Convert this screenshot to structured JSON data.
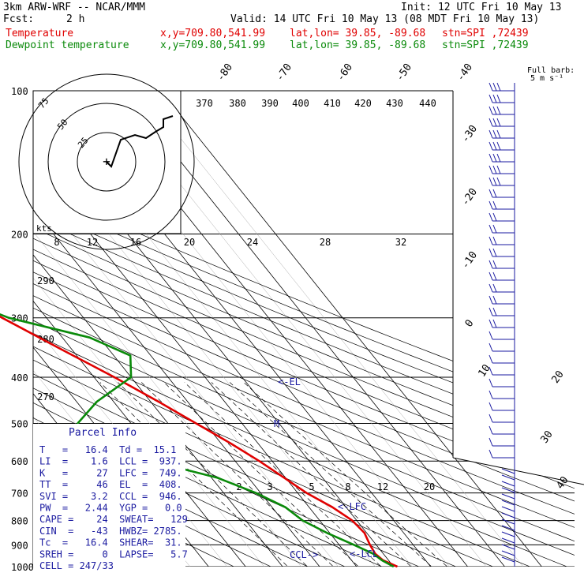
{
  "header": {
    "model": "3km ARW-WRF -- NCAR/MMM",
    "init": "Init: 12 UTC Fri 10 May 13",
    "fcst_label": "Fcst:",
    "fcst_value": "2 h",
    "valid": "Valid: 14 UTC Fri 10 May 13 (08 MDT Fri 10 May 13)",
    "temp_line": {
      "label": "Temperature",
      "xy": "x,y=709.80,541.99",
      "latlon": "lat,lon= 39.85, -89.68",
      "stn": "stn=SPI ,72439"
    },
    "dew_line": {
      "label": "Dewpoint temperature",
      "xy": "x,y=709.80,541.99",
      "latlon": "lat,lon= 39.85, -89.68",
      "stn": "stn=SPI ,72439"
    }
  },
  "barb_legend": {
    "line1": "Full barb:",
    "line2": "5 m s⁻¹"
  },
  "hodograph": {
    "kts_label": "kts",
    "ring_labels": [
      "25",
      "50",
      "75"
    ],
    "points": [
      [
        0,
        0
      ],
      [
        3,
        -3
      ],
      [
        9,
        14
      ],
      [
        18,
        17
      ],
      [
        25,
        15
      ],
      [
        31,
        19
      ],
      [
        36,
        22
      ],
      [
        36,
        27
      ],
      [
        42,
        29
      ]
    ]
  },
  "parcel_info": {
    "title": "Parcel Info",
    "rows": [
      "T   =   16.4  Td =  15.1",
      "LI  =    1.6  LCL =  937.",
      "K   =     27  LFC =  749.",
      "TT  =     46  EL  =  408.",
      "SVI =    3.2  CCL =  946.",
      "PW  =   2.44  YGP =   0.0",
      "CAPE =    24  SWEAT=   129",
      "CIN  =   -43  HWBZ= 2785.",
      "Tc  =   16.4  SHEAR=  31.",
      "SREH =     0  LAPSE=   5.7",
      "CELL = 247/33"
    ]
  },
  "markers": {
    "el": "<-EL",
    "m": "M",
    "lfc": "<-LFC",
    "ccl": "CCL->",
    "lcl": "<-LCL"
  },
  "chart_data": {
    "type": "line",
    "skewt": true,
    "pressure_levels": [
      100,
      200,
      300,
      400,
      500,
      600,
      700,
      800,
      900,
      1000
    ],
    "pressure_scale": "log",
    "isotherm_labels": [
      "-80",
      "-70",
      "-60",
      "-50",
      "-40",
      "-30",
      "-20",
      "-10",
      "0",
      "10",
      "20",
      "30",
      "40"
    ],
    "theta_labels": [
      "370",
      "380",
      "390",
      "400",
      "410",
      "420",
      "430",
      "440"
    ],
    "mixing_ratio_top_labels": [
      "8",
      "12",
      "16",
      "20",
      "24",
      "28",
      "32"
    ],
    "mixing_ratio_low_labels": [
      "2",
      "3",
      "5",
      "8",
      "12",
      "20"
    ],
    "adiabat_labels": [
      "290",
      "280",
      "270"
    ],
    "series": [
      {
        "name": "Temperature",
        "color": "#e00000",
        "points": [
          [
            1000,
            21
          ],
          [
            970,
            18.5
          ],
          [
            940,
            17.8
          ],
          [
            900,
            18.3
          ],
          [
            850,
            19.4
          ],
          [
            800,
            18.8
          ],
          [
            750,
            16.3
          ],
          [
            700,
            12.4
          ],
          [
            650,
            9.6
          ],
          [
            600,
            6.5
          ],
          [
            550,
            2.5
          ],
          [
            500,
            -2.4
          ],
          [
            450,
            -7.9
          ],
          [
            400,
            -14.5
          ],
          [
            350,
            -22.7
          ],
          [
            300,
            -32
          ],
          [
            250,
            -42
          ],
          [
            220,
            -47.6
          ],
          [
            200,
            -48.9
          ],
          [
            180,
            -50.6
          ],
          [
            150,
            -54.3
          ],
          [
            130,
            -56.3
          ],
          [
            100,
            -57.4
          ]
        ]
      },
      {
        "name": "Dewpoint temperature",
        "color": "#0a8a0a",
        "points": [
          [
            1000,
            20
          ],
          [
            970,
            18.2
          ],
          [
            940,
            17.3
          ],
          [
            900,
            14
          ],
          [
            850,
            9.3
          ],
          [
            800,
            5.4
          ],
          [
            750,
            3.6
          ],
          [
            700,
            -1.3
          ],
          [
            650,
            -8.5
          ],
          [
            600,
            -22.6
          ],
          [
            550,
            -36
          ],
          [
            500,
            -34.4
          ],
          [
            450,
            -24.5
          ],
          [
            400,
            -10
          ],
          [
            360,
            -5.5
          ],
          [
            330,
            -12.6
          ],
          [
            300,
            -30.2
          ],
          [
            280,
            -37
          ],
          [
            250,
            -38
          ],
          [
            200,
            -54.9
          ],
          [
            180,
            -61.6
          ],
          [
            150,
            -64
          ],
          [
            130,
            -72.6
          ],
          [
            115,
            -83.2
          ],
          [
            100,
            -90.9
          ]
        ]
      }
    ]
  }
}
